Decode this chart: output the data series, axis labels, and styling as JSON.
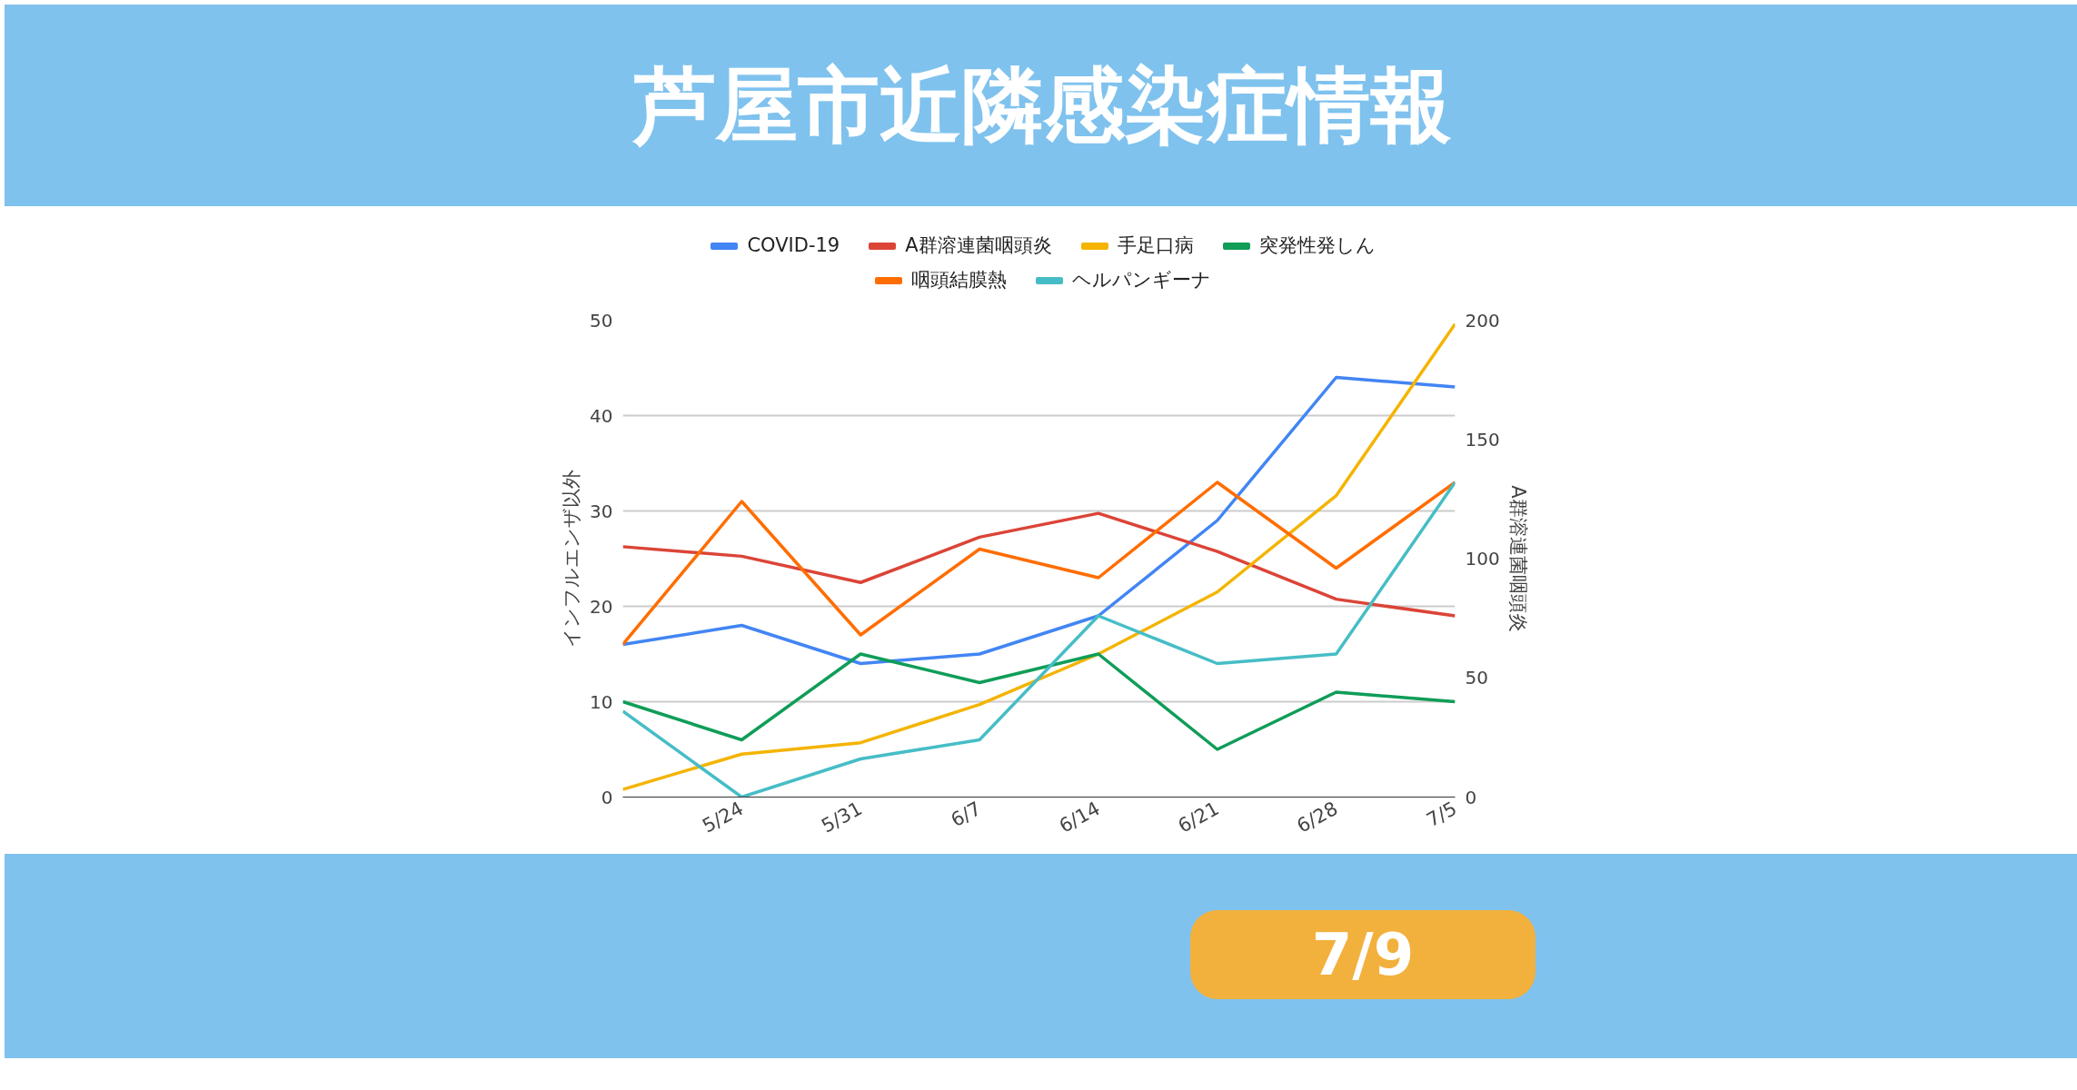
{
  "chart_data": {
    "type": "line",
    "title": "芦屋市近隣感染症情報",
    "ylabel": "インフルエンザ以外",
    "y2label": "A群溶連菌咽頭炎",
    "categories": [
      null,
      "5/24",
      "5/31",
      "6/7",
      "6/14",
      "6/21",
      "6/28",
      "7/5"
    ],
    "series": [
      {
        "name": "COVID-19",
        "color": "#4285f4",
        "values": [
          16,
          18,
          14,
          15,
          19,
          29,
          44,
          43
        ]
      },
      {
        "name": "A群溶連菌咽頭炎",
        "color": "#db4437",
        "axis": "y2",
        "values": [
          105,
          101,
          90,
          109,
          119,
          103,
          83,
          76
        ]
      },
      {
        "name": "手足口病",
        "color": "#f4b400",
        "values": [
          0.8,
          4.5,
          5.7,
          9.7,
          15,
          21.5,
          31.6,
          49.6
        ]
      },
      {
        "name": "突発性発しん",
        "color": "#0f9d58",
        "values": [
          10,
          6,
          15,
          12,
          15,
          5,
          11,
          10
        ]
      },
      {
        "name": "咽頭結膜熱",
        "color": "#ff6d01",
        "values": [
          16,
          31,
          17,
          26,
          23,
          33,
          24,
          33
        ]
      },
      {
        "name": "ヘルパンギーナ",
        "color": "#46bdc6",
        "values": [
          9,
          0,
          4,
          6,
          19,
          14,
          15,
          33
        ]
      }
    ],
    "ylim": [
      0,
      50
    ],
    "yticks": [
      0,
      10,
      20,
      30,
      40,
      50
    ],
    "y2lim": [
      0,
      200
    ],
    "y2ticks": [
      0,
      50,
      100,
      150,
      200
    ],
    "grid": "y",
    "legend": "top",
    "annotations": [
      "7/9"
    ]
  }
}
